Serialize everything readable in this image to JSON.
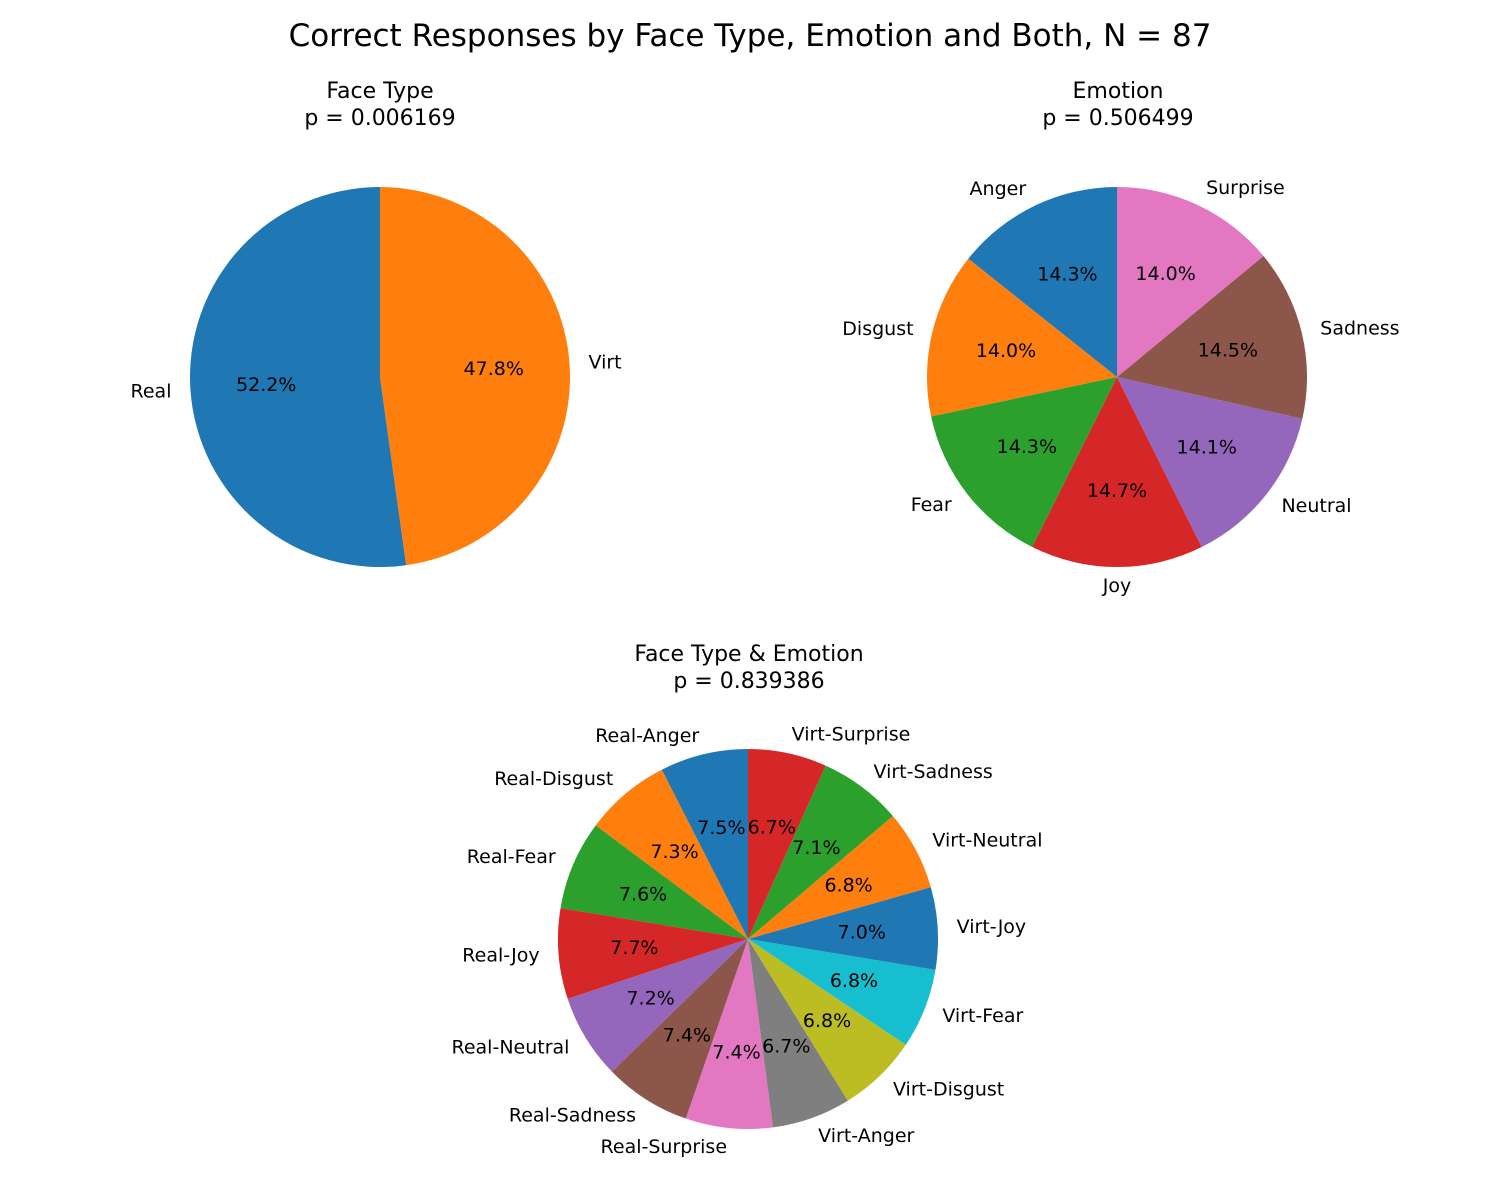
{
  "figure": {
    "title": "Correct Responses by Face Type, Emotion and Both, N = 87"
  },
  "chart_data": [
    {
      "type": "pie",
      "title": "Face Type",
      "subtitle": "p = 0.006169",
      "categories": [
        "Real",
        "Virt"
      ],
      "values": [
        52.2,
        47.8
      ],
      "pct_labels": [
        "52.2%",
        "47.8%"
      ],
      "colors": [
        "#1f77b4",
        "#ff7f0e"
      ]
    },
    {
      "type": "pie",
      "title": "Emotion",
      "subtitle": "p = 0.506499",
      "categories": [
        "Anger",
        "Disgust",
        "Fear",
        "Joy",
        "Neutral",
        "Sadness",
        "Surprise"
      ],
      "values": [
        14.3,
        14.0,
        14.3,
        14.7,
        14.1,
        14.5,
        14.0
      ],
      "pct_labels": [
        "14.3%",
        "14.0%",
        "14.3%",
        "14.7%",
        "14.1%",
        "14.5%",
        "14.0%"
      ],
      "colors": [
        "#1f77b4",
        "#ff7f0e",
        "#2ca02c",
        "#d62728",
        "#9467bd",
        "#8c564b",
        "#e377c2"
      ]
    },
    {
      "type": "pie",
      "title": "Face Type & Emotion",
      "subtitle": "p = 0.839386",
      "categories": [
        "Real-Anger",
        "Real-Disgust",
        "Real-Fear",
        "Real-Joy",
        "Real-Neutral",
        "Real-Sadness",
        "Real-Surprise",
        "Virt-Anger",
        "Virt-Disgust",
        "Virt-Fear",
        "Virt-Joy",
        "Virt-Neutral",
        "Virt-Sadness",
        "Virt-Surprise"
      ],
      "values": [
        7.5,
        7.3,
        7.6,
        7.7,
        7.2,
        7.4,
        7.4,
        6.7,
        6.8,
        6.8,
        7.0,
        6.8,
        7.1,
        6.7
      ],
      "pct_labels": [
        "7.5%",
        "7.3%",
        "7.6%",
        "7.7%",
        "7.2%",
        "7.4%",
        "7.4%",
        "6.7%",
        "6.8%",
        "6.8%",
        "7.0%",
        "6.8%",
        "7.1%",
        "6.7%"
      ],
      "colors": [
        "#1f77b4",
        "#ff7f0e",
        "#2ca02c",
        "#d62728",
        "#9467bd",
        "#8c564b",
        "#e377c2",
        "#7f7f7f",
        "#bcbd22",
        "#17becf",
        "#1f77b4",
        "#ff7f0e",
        "#2ca02c",
        "#d62728"
      ]
    }
  ]
}
